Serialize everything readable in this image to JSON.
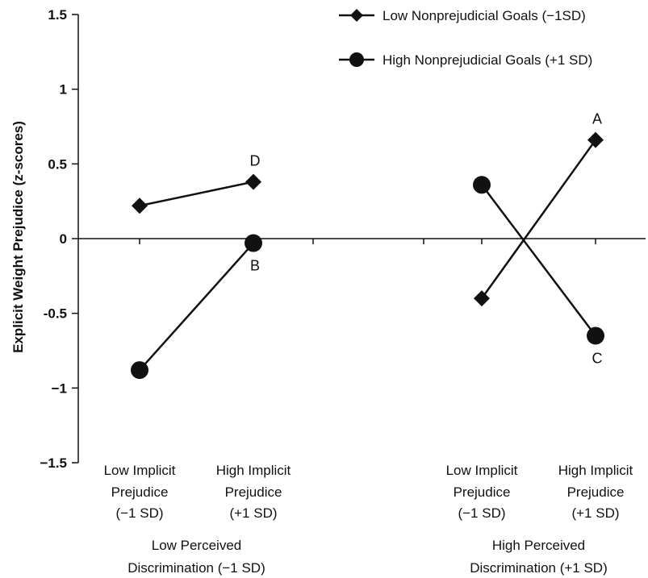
{
  "chart_data": {
    "type": "line",
    "title": "",
    "ylabel": "Explicit Weight Prejudice (z-scores)",
    "ylim": [
      -1.5,
      1.5
    ],
    "yticks": [
      {
        "value": 1.5,
        "label": "1.5"
      },
      {
        "value": 1,
        "label": "1"
      },
      {
        "value": 0.5,
        "label": "0.5"
      },
      {
        "value": 0,
        "label": "0"
      },
      {
        "value": -0.5,
        "label": "-0.5"
      },
      {
        "value": -1,
        "label": "−1"
      },
      {
        "value": -1.5,
        "label": "−1.5"
      }
    ],
    "grid": false,
    "legend_position": "top-right",
    "categories": [
      {
        "lines": [
          "Low Implicit",
          "Prejudice",
          "(−1 SD)"
        ]
      },
      {
        "lines": [
          "High Implicit",
          "Prejudice",
          "(+1 SD)"
        ]
      },
      {
        "lines": [
          "Low Implicit",
          "Prejudice",
          "(−1 SD)"
        ]
      },
      {
        "lines": [
          "High Implicit",
          "Prejudice",
          "(+1 SD)"
        ]
      }
    ],
    "groups": [
      {
        "lines": [
          "Low Perceived",
          "Discrimination (−1 SD)"
        ],
        "categories": [
          0,
          1
        ]
      },
      {
        "lines": [
          "High Perceived",
          "Discrimination (+1 SD)"
        ],
        "categories": [
          2,
          3
        ]
      }
    ],
    "series": [
      {
        "name": "Low Nonprejudicial Goals (−1SD)",
        "marker": "diamond",
        "segments": [
          {
            "points": [
              {
                "cat": 0,
                "y": 0.22
              },
              {
                "cat": 1,
                "y": 0.38
              }
            ]
          },
          {
            "points": [
              {
                "cat": 2,
                "y": -0.4
              },
              {
                "cat": 3,
                "y": 0.66
              }
            ]
          }
        ]
      },
      {
        "name": "High Nonprejudicial Goals (+1 SD)",
        "marker": "circle",
        "segments": [
          {
            "points": [
              {
                "cat": 0,
                "y": -0.88
              },
              {
                "cat": 1,
                "y": -0.03
              }
            ]
          },
          {
            "points": [
              {
                "cat": 2,
                "y": 0.36
              },
              {
                "cat": 3,
                "y": -0.65
              }
            ]
          }
        ]
      }
    ],
    "annotations": [
      {
        "text": "A",
        "series": 0,
        "cat": 3,
        "y": 0.66,
        "pos": "above"
      },
      {
        "text": "B",
        "series": 1,
        "cat": 1,
        "y": -0.03,
        "pos": "below"
      },
      {
        "text": "C",
        "series": 1,
        "cat": 3,
        "y": -0.65,
        "pos": "below"
      },
      {
        "text": "D",
        "series": 0,
        "cat": 1,
        "y": 0.38,
        "pos": "above"
      }
    ],
    "colors": {
      "line": "#111111",
      "marker": "#111111"
    }
  }
}
